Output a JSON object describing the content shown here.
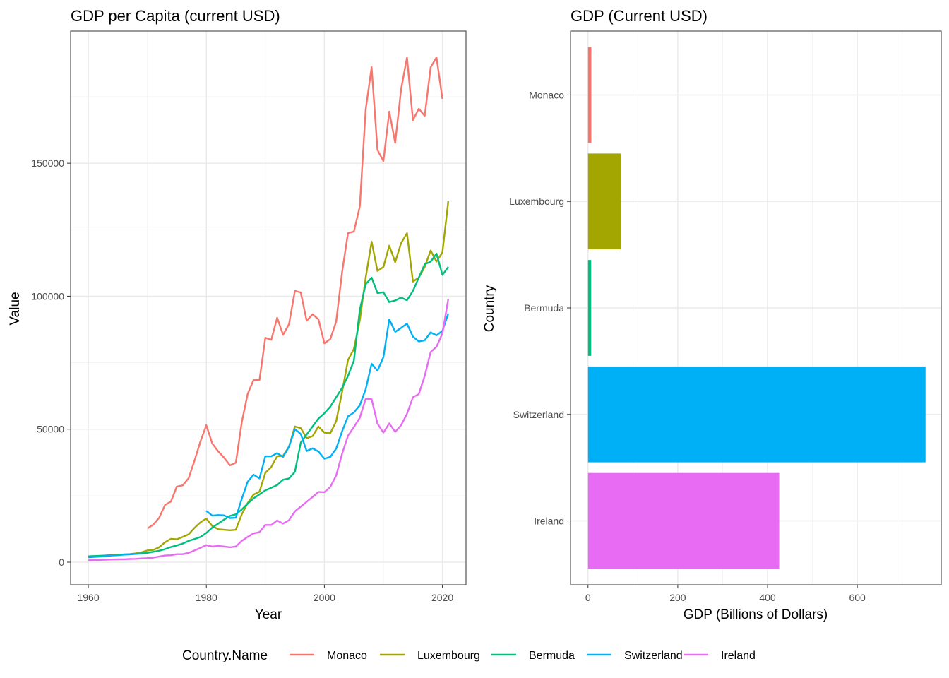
{
  "chart_data": [
    {
      "type": "line",
      "title": "GDP per Capita (current USD)",
      "xlabel": "Year",
      "ylabel": "Value",
      "xlim": [
        1957,
        2024
      ],
      "ylim": [
        -8500,
        199700
      ],
      "xticks": [
        "1960",
        "1980",
        "2000",
        "2020"
      ],
      "yticks": [
        "0",
        "50000",
        "100000",
        "150000"
      ],
      "grid": true,
      "start_year": 1960,
      "series": [
        {
          "name": "Monaco",
          "color": "#F8766D",
          "values": [
            null,
            null,
            null,
            null,
            null,
            null,
            null,
            null,
            null,
            null,
            12700,
            14100,
            16700,
            21500,
            22800,
            28400,
            28900,
            31600,
            38200,
            45400,
            51500,
            44600,
            41700,
            39300,
            36400,
            37400,
            52600,
            63200,
            68500,
            68500,
            84400,
            83600,
            91900,
            85500,
            89500,
            102000,
            101400,
            90800,
            93200,
            91300,
            82300,
            83900,
            90500,
            109100,
            123700,
            124300,
            133800,
            170200,
            186100,
            155000,
            150800,
            169400,
            157700,
            177900,
            189800,
            166200,
            170500,
            167800,
            186100,
            189800,
            174200,
            null
          ]
        },
        {
          "name": "Luxembourg",
          "color": "#A3A500",
          "values": [
            2100,
            2200,
            2300,
            2500,
            2700,
            2800,
            2900,
            3000,
            3300,
            3700,
            4400,
            4600,
            5600,
            7500,
            8800,
            8600,
            9500,
            10500,
            12900,
            15000,
            16400,
            13600,
            12400,
            12200,
            12000,
            12200,
            18000,
            22200,
            25400,
            26500,
            33600,
            35800,
            39800,
            40000,
            43500,
            51000,
            50400,
            46600,
            47400,
            51000,
            48700,
            48500,
            53000,
            64000,
            76000,
            80200,
            91000,
            107000,
            120500,
            109500,
            111000,
            119000,
            112800,
            120000,
            123700,
            105500,
            107000,
            111000,
            117200,
            113000,
            116500,
            135700
          ]
        },
        {
          "name": "Bermuda",
          "color": "#00BF7D",
          "values": [
            2200,
            2300,
            2400,
            2500,
            2600,
            2700,
            2900,
            3000,
            3100,
            3300,
            3500,
            3900,
            4300,
            4900,
            5700,
            6300,
            7000,
            8000,
            8700,
            9500,
            11000,
            13000,
            14500,
            16000,
            17400,
            18000,
            19800,
            22000,
            24000,
            25500,
            27000,
            28000,
            29000,
            31000,
            31500,
            34000,
            45000,
            48000,
            51000,
            54000,
            56000,
            58500,
            62000,
            65500,
            70000,
            75800,
            95000,
            104500,
            107000,
            101200,
            101500,
            97800,
            98400,
            99500,
            98500,
            102000,
            107000,
            112000,
            113000,
            116000,
            108000,
            111000
          ]
        },
        {
          "name": "Switzerland",
          "color": "#00B0F6",
          "values": [
            1800,
            2000,
            2100,
            2300,
            2500,
            2600,
            2800,
            2900,
            3100,
            3300,
            null,
            null,
            null,
            null,
            null,
            null,
            null,
            null,
            null,
            null,
            19300,
            17500,
            17700,
            17600,
            16600,
            16700,
            23800,
            30200,
            32900,
            31500,
            39800,
            39800,
            41000,
            39600,
            43400,
            50000,
            48200,
            41800,
            42800,
            41600,
            38900,
            39600,
            42700,
            49200,
            54800,
            56300,
            59000,
            65000,
            74600,
            72000,
            77100,
            91300,
            86600,
            88100,
            89700,
            84800,
            83000,
            83400,
            86400,
            85300,
            87000,
            93500
          ]
        },
        {
          "name": "Ireland",
          "color": "#E76BF3",
          "values": [
            700,
            800,
            850,
            900,
            1000,
            1050,
            1100,
            1200,
            1250,
            1400,
            1500,
            1700,
            2100,
            2500,
            2600,
            3000,
            3000,
            3500,
            4400,
            5400,
            6400,
            5900,
            6100,
            5900,
            5600,
            5900,
            8000,
            9500,
            10800,
            11300,
            14000,
            14000,
            15700,
            14500,
            15800,
            19100,
            20900,
            22700,
            24500,
            26400,
            26300,
            28300,
            32600,
            40800,
            47500,
            50800,
            54300,
            61400,
            61300,
            52100,
            48700,
            52200,
            49000,
            51500,
            55800,
            62000,
            63200,
            70000,
            79000,
            81000,
            86000,
            99000
          ]
        }
      ]
    },
    {
      "type": "bar",
      "orientation": "horizontal",
      "title": "GDP (Current USD)",
      "xlabel": "GDP (Billions of Dollars)",
      "ylabel": "Country",
      "xlim": [
        -39,
        787
      ],
      "xticks": [
        "0",
        "200",
        "400",
        "600"
      ],
      "grid": true,
      "categories": [
        "Monaco",
        "Luxembourg",
        "Bermuda",
        "Switzerland",
        "Ireland"
      ],
      "values": [
        7.4,
        73,
        7,
        752,
        426
      ],
      "colors": [
        "#F8766D",
        "#A3A500",
        "#00BF7D",
        "#00B0F6",
        "#E76BF3"
      ]
    }
  ],
  "legend": {
    "title": "Country.Name",
    "placement": "bottom",
    "entries": [
      "Monaco",
      "Luxembourg",
      "Bermuda",
      "Switzerland",
      "Ireland"
    ]
  }
}
